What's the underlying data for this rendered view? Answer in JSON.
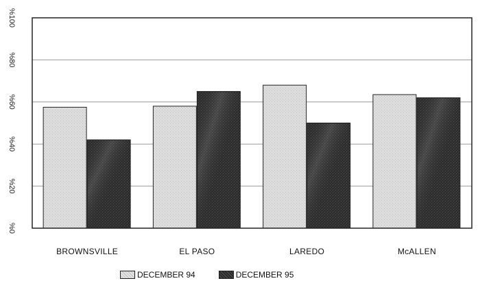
{
  "chart_data": {
    "type": "bar",
    "categories": [
      "BROWNSVILLE",
      "EL PASO",
      "LAREDO",
      "McALLEN"
    ],
    "series": [
      {
        "name": "DECEMBER 94",
        "values": [
          57.5,
          58.0,
          68.0,
          63.5
        ]
      },
      {
        "name": "DECEMBER 95",
        "values": [
          42.0,
          65.0,
          50.0,
          62.0
        ]
      }
    ],
    "y_ticks": [
      0,
      20,
      40,
      60,
      80,
      100
    ],
    "y_tick_labels": [
      "%0",
      "%20",
      "%40",
      "%60",
      "%80",
      "%100"
    ],
    "ylim": [
      0,
      100
    ],
    "title": "",
    "xlabel": "",
    "ylabel": "",
    "grid": true,
    "legend_position": "bottom",
    "colors": {
      "light": "#d9d9d9",
      "dark": "#333333",
      "grid": "#9a9a9a",
      "frame": "#222222"
    }
  }
}
